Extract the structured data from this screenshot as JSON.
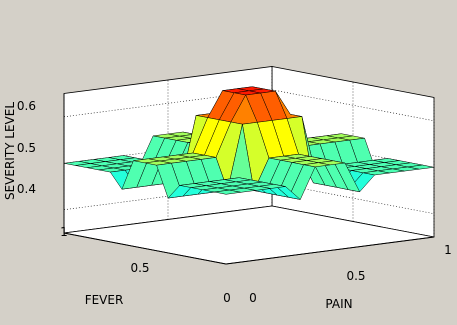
{
  "chart_data": {
    "type": "surface",
    "title": "",
    "xlabel": "FEVER",
    "ylabel": "PAIN",
    "zlabel": "SEVERITY LEVEL",
    "xlim": [
      0,
      1
    ],
    "ylim": [
      0,
      1
    ],
    "zlim": [
      0.35,
      0.65
    ],
    "x_ticks": [
      "0",
      "0.5",
      "1"
    ],
    "y_ticks": [
      "0",
      "0.5",
      "1"
    ],
    "z_ticks": [
      "0.4",
      "0.5",
      "0.6"
    ],
    "grid": true,
    "colormap": "jet",
    "grid_size": [
      15,
      15
    ],
    "z_low": 0.38,
    "z_base": 0.5,
    "z_high": 0.66
  },
  "colors": {
    "figure_bg": "#d4d0c8",
    "axes_bg": "#ffffff",
    "edge": "#000000"
  }
}
